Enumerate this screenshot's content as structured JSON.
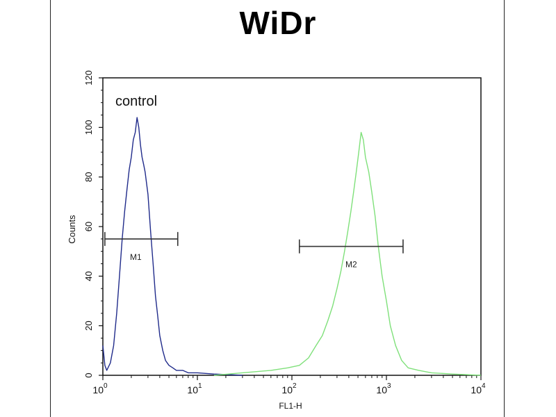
{
  "chart_data": {
    "type": "line",
    "title": "WiDr",
    "xlabel": "FL1-H",
    "ylabel": "Counts",
    "x_scale": "log",
    "xlim": [
      1,
      10000
    ],
    "ylim": [
      0,
      120
    ],
    "y_ticks": [
      "0",
      "20",
      "40",
      "60",
      "80",
      "100",
      "120"
    ],
    "x_ticks": [
      {
        "base": "10",
        "exp": "0"
      },
      {
        "base": "10",
        "exp": "1"
      },
      {
        "base": "10",
        "exp": "2"
      },
      {
        "base": "10",
        "exp": "3"
      },
      {
        "base": "10",
        "exp": "4"
      }
    ],
    "annotations": [
      {
        "text": "control"
      }
    ],
    "series": [
      {
        "name": "control",
        "color": "#1f2a8a",
        "x": [
          1.0,
          1.05,
          1.1,
          1.2,
          1.3,
          1.4,
          1.5,
          1.6,
          1.7,
          1.8,
          1.9,
          2.0,
          2.1,
          2.2,
          2.3,
          2.4,
          2.5,
          2.6,
          2.7,
          2.8,
          3.0,
          3.2,
          3.4,
          3.6,
          3.8,
          4.0,
          4.3,
          4.6,
          5.0,
          5.5,
          6.0,
          7.0,
          8.0,
          10.0,
          15.0,
          30.0
        ],
        "y": [
          12,
          4,
          2,
          5,
          12,
          25,
          40,
          55,
          66,
          75,
          83,
          88,
          95,
          98,
          104,
          100,
          93,
          88,
          85,
          82,
          73,
          58,
          45,
          32,
          24,
          16,
          10,
          6,
          4,
          3,
          2,
          2,
          1,
          1,
          0.5,
          0
        ]
      },
      {
        "name": "WiDr",
        "color": "#7fe07a",
        "x": [
          15,
          30,
          60,
          90,
          120,
          150,
          180,
          210,
          240,
          270,
          300,
          330,
          360,
          390,
          420,
          450,
          480,
          510,
          540,
          570,
          600,
          650,
          700,
          760,
          820,
          900,
          1000,
          1100,
          1250,
          1450,
          1700,
          2200,
          3000,
          5000,
          10000
        ],
        "y": [
          0,
          1,
          2,
          3,
          4,
          7,
          12,
          16,
          22,
          28,
          35,
          42,
          50,
          58,
          66,
          74,
          82,
          90,
          98,
          95,
          88,
          82,
          74,
          64,
          52,
          40,
          30,
          20,
          12,
          6,
          3,
          2,
          1,
          0.5,
          0
        ]
      }
    ],
    "markers": [
      {
        "label": "M1",
        "x_start": 1.05,
        "x_end": 6.2,
        "y": 55
      },
      {
        "label": "M2",
        "x_start": 120,
        "x_end": 1500,
        "y": 52
      }
    ]
  }
}
